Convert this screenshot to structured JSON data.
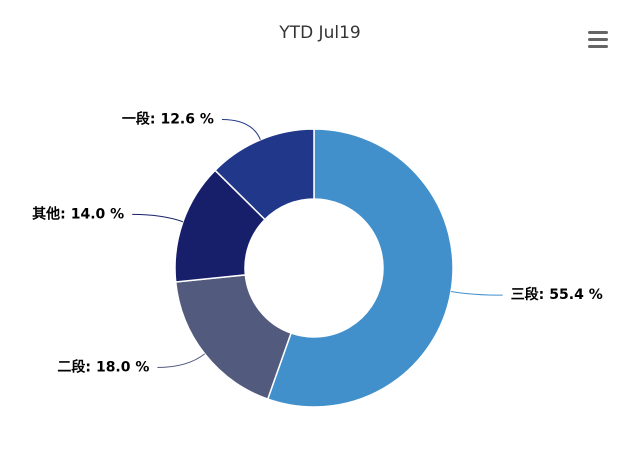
{
  "chart_data": {
    "type": "donut",
    "title": "YTD Jul19",
    "categories": [
      "三段:",
      "二段:",
      "其他:",
      "一段:"
    ],
    "values": [
      55.4,
      18.0,
      14.0,
      12.6
    ],
    "value_labels": [
      "55.4 %",
      "18.0 %",
      "14.0 %",
      "12.6 %"
    ],
    "colors": [
      "#4190cc",
      "#525a7e",
      "#171f6a",
      "#21388a"
    ]
  }
}
